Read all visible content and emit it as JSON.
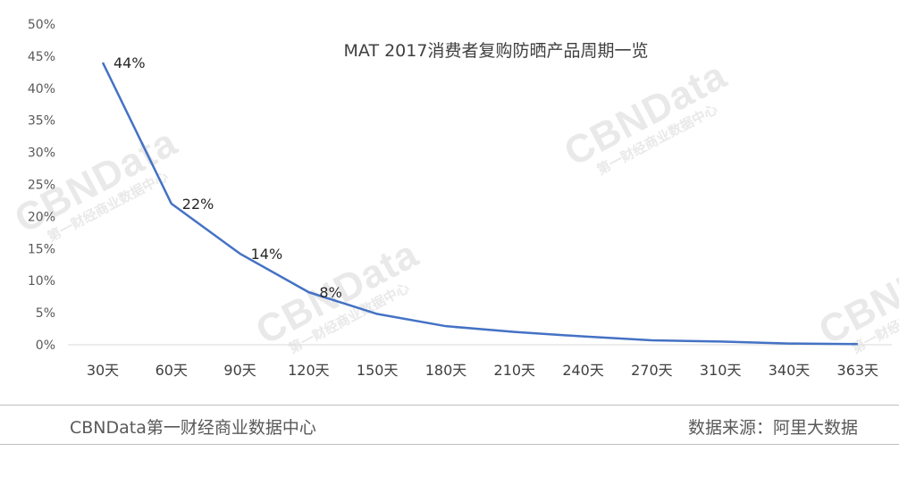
{
  "chart_data": {
    "type": "line",
    "title": "MAT 2017消费者复购防晒产品周期一览",
    "categories": [
      "30天",
      "60天",
      "90天",
      "120天",
      "150天",
      "180天",
      "210天",
      "240天",
      "270天",
      "310天",
      "340天",
      "363天"
    ],
    "values": [
      44,
      22,
      14.2,
      8.2,
      4.8,
      2.9,
      2.0,
      1.3,
      0.7,
      0.5,
      0.2,
      0.1
    ],
    "data_labels": [
      {
        "index": 0,
        "text": "44%"
      },
      {
        "index": 1,
        "text": "22%"
      },
      {
        "index": 2,
        "text": "14%"
      },
      {
        "index": 3,
        "text": "8%"
      }
    ],
    "y_ticks": [
      "0%",
      "5%",
      "10%",
      "15%",
      "20%",
      "25%",
      "30%",
      "35%",
      "40%",
      "45%",
      "50%"
    ],
    "ylim": [
      0,
      50
    ],
    "grid": false,
    "legend": "none",
    "line_color": "#4472c4"
  },
  "watermark": {
    "main": "CBNData",
    "sub": "第一财经商业数据中心"
  },
  "footer": {
    "left": "CBNData第一财经商业数据中心",
    "right": "数据来源：阿里大数据"
  }
}
